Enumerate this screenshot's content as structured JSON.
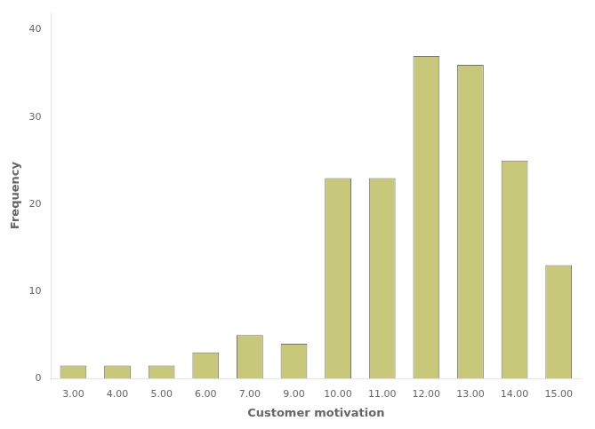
{
  "chart_data": {
    "type": "bar",
    "categories": [
      "3.00",
      "4.00",
      "5.00",
      "6.00",
      "7.00",
      "9.00",
      "10.00",
      "11.00",
      "12.00",
      "13.00",
      "14.00",
      "15.00"
    ],
    "values": [
      1.5,
      1.5,
      1.5,
      3,
      5,
      4,
      23,
      23,
      37,
      36,
      25,
      13
    ],
    "color": "#c8c87a",
    "xlabel": "Customer motivation",
    "ylabel": "Frequency",
    "ylim": [
      0,
      42
    ],
    "yticks": [
      0,
      10,
      20,
      30,
      40
    ],
    "grid": false
  }
}
